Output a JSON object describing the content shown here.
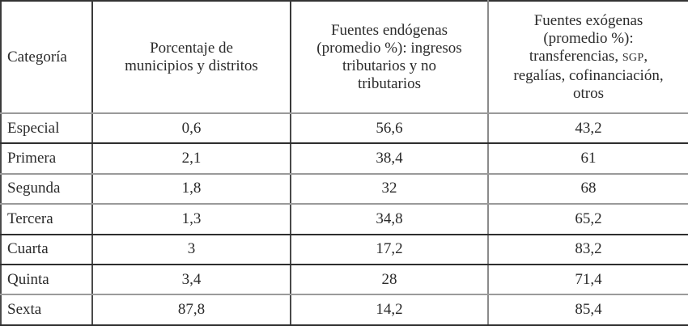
{
  "table": {
    "headers": [
      {
        "lines": [
          "Categoría"
        ]
      },
      {
        "lines": [
          "Porcentaje de",
          "municipios y distritos"
        ]
      },
      {
        "lines": [
          "Fuentes endógenas",
          "(promedio %): ingresos",
          "tributarios y no",
          "tributarios"
        ]
      },
      {
        "lines": [
          "Fuentes exógenas",
          "(promedio %):",
          "transferencias,",
          "SGP",
          ",",
          "regalías, cofinanciación,",
          "otros"
        ]
      }
    ],
    "rows": [
      {
        "categoria": "Especial",
        "porcentaje": "0,6",
        "endogenas": "56,6",
        "exogenas": "43,2"
      },
      {
        "categoria": "Primera",
        "porcentaje": "2,1",
        "endogenas": "38,4",
        "exogenas": "61"
      },
      {
        "categoria": "Segunda",
        "porcentaje": "1,8",
        "endogenas": "32",
        "exogenas": "68"
      },
      {
        "categoria": "Tercera",
        "porcentaje": "1,3",
        "endogenas": "34,8",
        "exogenas": "65,2"
      },
      {
        "categoria": "Cuarta",
        "porcentaje": "3",
        "endogenas": "17,2",
        "exogenas": "83,2"
      },
      {
        "categoria": "Quinta",
        "porcentaje": "3,4",
        "endogenas": "28",
        "exogenas": "71,4"
      },
      {
        "categoria": "Sexta",
        "porcentaje": "87,8",
        "endogenas": "14,2",
        "exogenas": "85,4"
      }
    ]
  }
}
